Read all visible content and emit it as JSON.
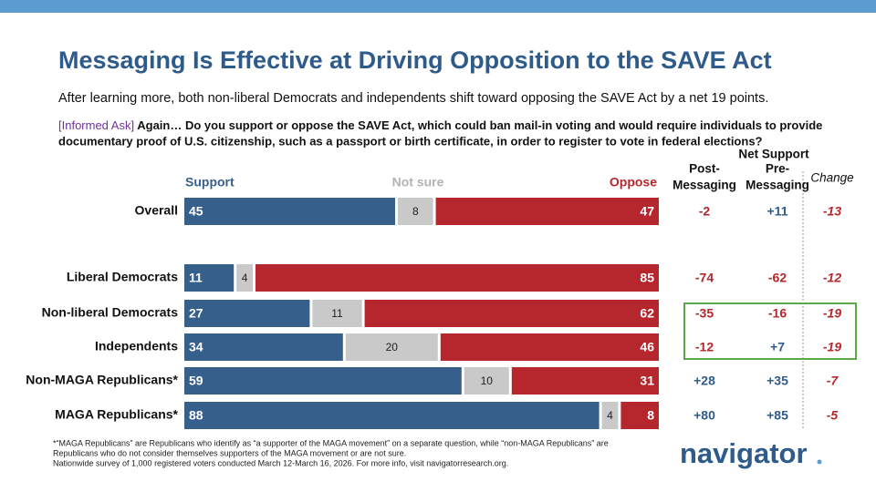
{
  "chart_data": {
    "type": "bar",
    "orientation": "horizontal",
    "stacked": true,
    "title": "Messaging Is Effective at Driving Opposition to the SAVE Act",
    "subtitle": "After learning more, both non-liberal Democrats and independents shift toward opposing the SAVE Act by a net 19 points.",
    "question_label": "[Informed Ask]",
    "question_lines": [
      "Again… Do you support or oppose the SAVE Act, which could ban mail-in voting and would require individuals to provide",
      "documentary proof of U.S. citizenship, such as a passport or birth certificate, in order to register to vote in federal elections?"
    ],
    "categories": [
      "Overall",
      null,
      "Liberal Democrats",
      "Non-liberal Democrats",
      "Independents",
      "Non-MAGA Republicans*",
      "MAGA Republicans*"
    ],
    "xlim": [
      0,
      100
    ],
    "series": [
      {
        "name": "Support",
        "color": "#365f8c",
        "values": [
          45,
          null,
          11,
          27,
          34,
          59,
          88
        ]
      },
      {
        "name": "Not sure",
        "color": "#c9c9c9",
        "values": [
          8,
          null,
          4,
          11,
          20,
          10,
          4
        ]
      },
      {
        "name": "Oppose",
        "color": "#b5272d",
        "values": [
          47,
          null,
          85,
          62,
          46,
          31,
          8
        ]
      }
    ]
  },
  "net_table": {
    "group_header": "Net Support",
    "columns": [
      [
        "Post-",
        "Messaging"
      ],
      [
        "Pre-",
        "Messaging"
      ],
      [
        "Change"
      ]
    ],
    "rows": [
      [
        "-2",
        "+11",
        "-13"
      ],
      null,
      [
        "-74",
        "-62",
        "-12"
      ],
      [
        "-35",
        "-16",
        "-19"
      ],
      [
        "-12",
        "+7",
        "-19"
      ],
      [
        "+28",
        "+35",
        "-7"
      ],
      [
        "+80",
        "+85",
        "-5"
      ]
    ]
  },
  "footnotes": [
    "*“MAGA Republicans” are Republicans who identify as “a supporter of the MAGA movement” on a separate question, while “non-MAGA Republicans” are",
    "Republicans who do not consider themselves supporters of the MAGA movement or are not sure.",
    "Nationwide survey of 1,000 registered voters conducted March 12-March 16, 2026. For more info, visit navigatorresearch.org."
  ],
  "logo": "navigator"
}
